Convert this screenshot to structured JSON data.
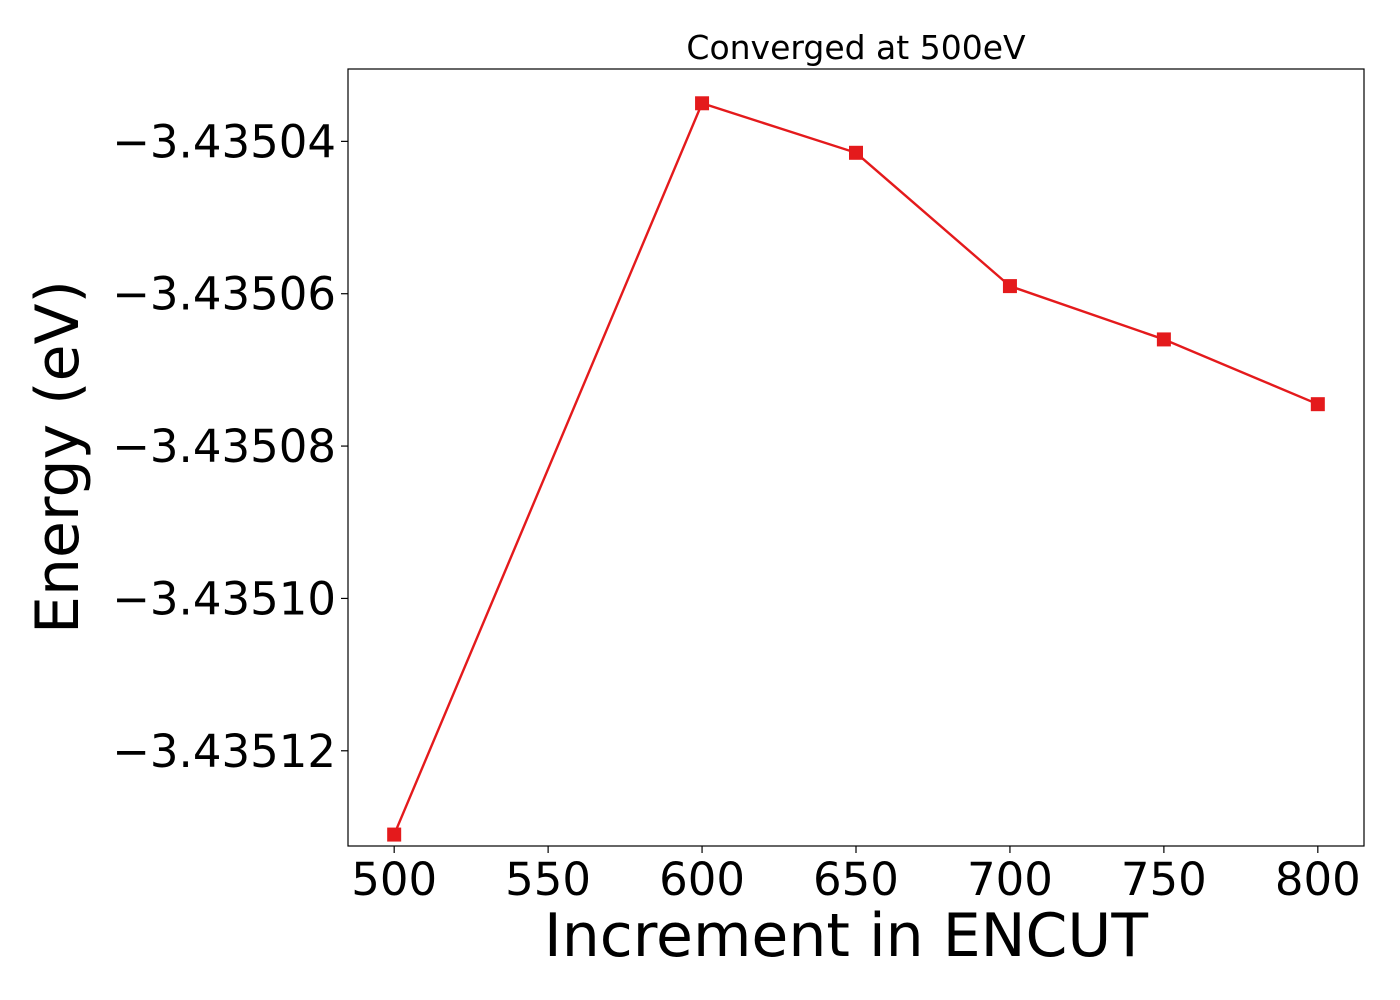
{
  "chart_data": {
    "type": "line",
    "title": "Converged at 500eV",
    "xlabel": "Increment in ENCUT",
    "ylabel": "Energy (eV)",
    "x": [
      500,
      600,
      650,
      700,
      750,
      800
    ],
    "series": [
      {
        "values": [
          -3.435131,
          -3.435035,
          -3.4350415,
          -3.435059,
          -3.435066,
          -3.4350745
        ],
        "color": "#e41a1c",
        "marker": "square"
      }
    ],
    "xticks": [
      500,
      550,
      600,
      650,
      700,
      750,
      800
    ],
    "xtick_labels": [
      "500",
      "550",
      "600",
      "650",
      "700",
      "750",
      "800"
    ],
    "yticks": [
      -3.43504,
      -3.43506,
      -3.43508,
      -3.4351,
      -3.43512
    ],
    "ytick_labels": [
      "−3.43504",
      "−3.43506",
      "−3.43508",
      "−3.43510",
      "−3.43512"
    ],
    "xlim": [
      485,
      815
    ],
    "ylim": [
      -3.4351325,
      -3.4350305
    ],
    "grid": false,
    "legend": "none"
  }
}
